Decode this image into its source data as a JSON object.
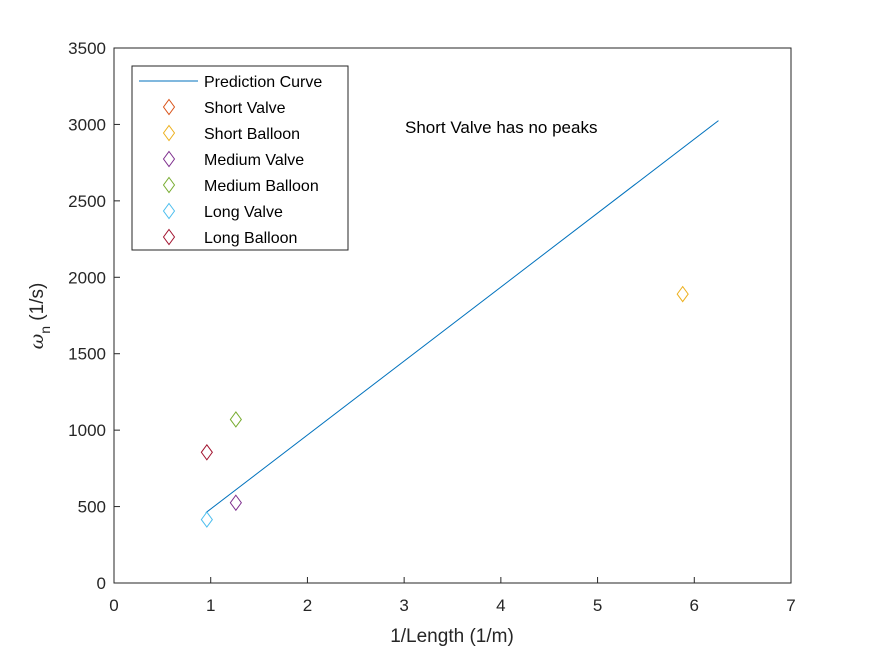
{
  "chart_data": {
    "type": "scatter",
    "title": "",
    "xlabel": "1/Length (1/m)",
    "ylabel_symbol": "ω",
    "ylabel_sub": "n",
    "ylabel_rest": " (1/s)",
    "xlim": [
      0,
      7
    ],
    "ylim": [
      0,
      3500
    ],
    "xticks": [
      0,
      1,
      2,
      3,
      4,
      5,
      6,
      7
    ],
    "yticks": [
      0,
      500,
      1000,
      1500,
      2000,
      2500,
      3000,
      3500
    ],
    "grid": false,
    "legend_position": "top-left",
    "annotation": "Short Valve has no peaks",
    "series": [
      {
        "name": "Prediction Curve",
        "kind": "line",
        "color": "#0072BD",
        "points": [
          [
            0.95,
            460
          ],
          [
            6.25,
            3025
          ]
        ]
      },
      {
        "name": "Short Valve",
        "kind": "marker",
        "color": "#D95319",
        "points": []
      },
      {
        "name": "Short Balloon",
        "kind": "marker",
        "color": "#EDB120",
        "points": [
          [
            5.88,
            1890
          ]
        ]
      },
      {
        "name": "Medium Valve",
        "kind": "marker",
        "color": "#7E2F8E",
        "points": [
          [
            1.26,
            525
          ]
        ]
      },
      {
        "name": "Medium Balloon",
        "kind": "marker",
        "color": "#77AC30",
        "points": [
          [
            1.26,
            1070
          ]
        ]
      },
      {
        "name": "Long Valve",
        "kind": "marker",
        "color": "#4DBEEE",
        "points": [
          [
            0.96,
            415
          ]
        ]
      },
      {
        "name": "Long Balloon",
        "kind": "marker",
        "color": "#A2142F",
        "points": [
          [
            0.96,
            855
          ]
        ]
      }
    ]
  }
}
